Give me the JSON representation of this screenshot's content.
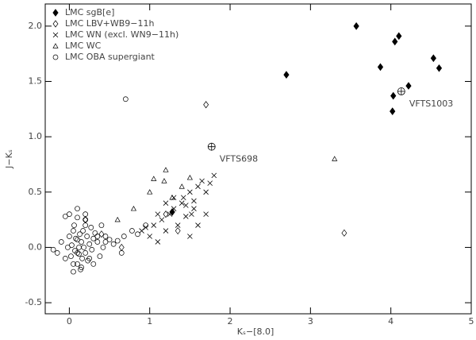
{
  "chart_data": {
    "type": "scatter",
    "x_label": "Kₛ−[8.0]",
    "y_label": "J−Kₛ",
    "xlim": [
      -0.3,
      5
    ],
    "ylim": [
      -0.6,
      2.2
    ],
    "xticks": [
      0,
      1,
      2,
      3,
      4,
      5
    ],
    "yticks": [
      -0.5,
      {
        "value": 0,
        "label": "0.0"
      },
      0.5,
      {
        "value": 1,
        "label": "1.0"
      },
      1.5,
      {
        "value": 2,
        "label": "2.0"
      }
    ],
    "legend": "upper left",
    "series": [
      {
        "name": "LMC sgB[e]",
        "marker": "filled-diamond",
        "color": "#000000",
        "x": [
          3.57,
          4.1,
          4.05,
          3.87,
          4.53,
          4.6,
          2.7,
          4.22,
          4.03,
          4.02,
          1.28
        ],
        "y": [
          2.0,
          1.91,
          1.86,
          1.63,
          1.71,
          1.62,
          1.56,
          1.46,
          1.37,
          1.23,
          0.32
        ]
      },
      {
        "name": "LMC LBV+WB9−11h",
        "marker": "open-diamond",
        "color": "#000000",
        "x": [
          1.7,
          3.42,
          0.65,
          1.2,
          1.35,
          0.2,
          0.4
        ],
        "y": [
          1.29,
          0.13,
          0.0,
          0.3,
          0.15,
          0.25,
          0.12
        ]
      },
      {
        "name": "LMC WN (excl. WN9−11h)",
        "marker": "cross",
        "color": "#000000",
        "x": [
          1.0,
          1.05,
          1.1,
          1.15,
          1.2,
          1.25,
          1.3,
          1.35,
          1.4,
          1.42,
          1.45,
          1.5,
          1.52,
          1.55,
          1.6,
          1.65,
          1.7,
          1.75,
          1.8,
          1.6,
          1.5,
          1.3,
          1.1,
          1.45,
          1.55,
          0.9,
          0.95,
          1.2,
          1.7
        ],
        "y": [
          0.1,
          0.2,
          0.05,
          0.25,
          0.15,
          0.3,
          0.35,
          0.2,
          0.4,
          0.45,
          0.38,
          0.5,
          0.3,
          0.42,
          0.55,
          0.6,
          0.5,
          0.58,
          0.65,
          0.2,
          0.1,
          0.45,
          0.3,
          0.28,
          0.35,
          0.15,
          0.18,
          0.4,
          0.3
        ]
      },
      {
        "name": "LMC WC",
        "marker": "triangle",
        "color": "#000000",
        "x": [
          3.3,
          1.05,
          1.18,
          1.28,
          1.4,
          0.6,
          0.8,
          1.0,
          1.5,
          1.2
        ],
        "y": [
          0.8,
          0.62,
          0.6,
          0.45,
          0.55,
          0.25,
          0.35,
          0.5,
          0.63,
          0.7
        ]
      },
      {
        "name": "LMC OBA supergiant",
        "marker": "circle",
        "color": "#000000",
        "x": [
          -0.2,
          -0.15,
          -0.1,
          -0.05,
          -0.02,
          0.0,
          0.02,
          0.03,
          0.05,
          0.06,
          0.07,
          0.08,
          0.1,
          0.1,
          0.12,
          0.13,
          0.14,
          0.15,
          0.16,
          0.17,
          0.18,
          0.2,
          0.2,
          0.22,
          0.23,
          0.25,
          0.27,
          0.28,
          0.3,
          0.32,
          0.35,
          0.38,
          0.4,
          0.42,
          0.45,
          0.5,
          0.55,
          0.6,
          0.65,
          0.7,
          0.0,
          0.05,
          0.1,
          0.15,
          0.2,
          0.25,
          0.3,
          0.1,
          0.12,
          -0.05,
          0.35,
          0.45,
          0.1,
          0.2,
          0.05,
          0.68,
          0.78,
          0.85,
          0.95
        ],
        "y": [
          -0.02,
          -0.05,
          0.05,
          -0.1,
          0.0,
          0.1,
          -0.08,
          0.02,
          -0.15,
          0.2,
          -0.03,
          0.08,
          0.35,
          -0.05,
          0.0,
          0.12,
          -0.2,
          0.05,
          -0.1,
          0.15,
          0.0,
          0.25,
          -0.05,
          0.1,
          -0.12,
          0.03,
          0.18,
          -0.02,
          0.08,
          0.13,
          0.05,
          -0.08,
          0.2,
          0.0,
          0.1,
          0.07,
          0.03,
          0.06,
          -0.05,
          1.34,
          0.3,
          -0.22,
          0.27,
          -0.18,
          0.3,
          -0.1,
          -0.15,
          0.07,
          -0.06,
          0.28,
          0.1,
          0.05,
          -0.15,
          0.2,
          0.15,
          0.1,
          0.15,
          0.12,
          0.2
        ]
      }
    ],
    "annotations": [
      {
        "text": "VFTS1003",
        "x": 4.13,
        "y": 1.41
      },
      {
        "text": "VFTS698",
        "x": 1.77,
        "y": 0.91
      }
    ]
  }
}
